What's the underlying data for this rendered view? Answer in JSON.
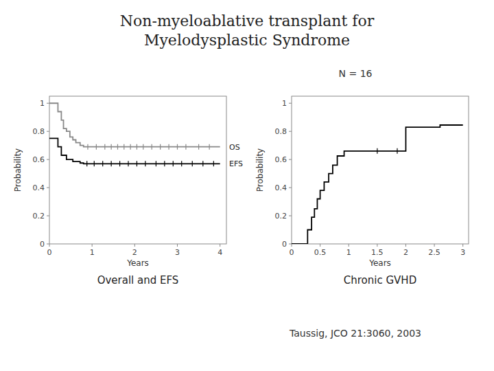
{
  "title": [
    "Non-myeloablative transplant for",
    "Myelodysplastic Syndrome"
  ],
  "annotations": [
    "N = 16",
    "Taussig, JCO 21:3060, 2003"
  ],
  "chart_data": [
    {
      "type": "step",
      "title": "Overall and EFS",
      "x_label": "Years",
      "y_label": "Probability",
      "xlim": [
        0,
        4.15
      ],
      "ylim": [
        0,
        1.05
      ],
      "xticks": [
        0,
        1,
        2,
        3,
        4
      ],
      "yticks": [
        0.0,
        0.2,
        0.4,
        0.6,
        0.8,
        1.0
      ],
      "grid": false,
      "series": [
        {
          "name": "OS",
          "color": "#888888",
          "x": [
            0,
            0.12,
            0.2,
            0.28,
            0.33,
            0.4,
            0.48,
            0.55,
            0.62,
            0.72,
            0.8,
            4.0
          ],
          "values": [
            1.0,
            1.0,
            0.94,
            0.88,
            0.82,
            0.8,
            0.76,
            0.74,
            0.72,
            0.7,
            0.69,
            0.69
          ],
          "censor_x": [
            0.9,
            1.1,
            1.3,
            1.45,
            1.6,
            1.75,
            1.9,
            2.05,
            2.2,
            2.4,
            2.6,
            2.8,
            3.0,
            3.2,
            3.5,
            3.75
          ],
          "censor_values": [
            0.69,
            0.69,
            0.69,
            0.69,
            0.69,
            0.69,
            0.69,
            0.69,
            0.69,
            0.69,
            0.69,
            0.69,
            0.69,
            0.69,
            0.69,
            0.69
          ]
        },
        {
          "name": "EFS",
          "color": "#000000",
          "x": [
            0,
            0.12,
            0.2,
            0.28,
            0.4,
            0.55,
            0.72,
            0.8,
            4.0
          ],
          "values": [
            0.75,
            0.75,
            0.69,
            0.63,
            0.6,
            0.585,
            0.575,
            0.57,
            0.57
          ],
          "censor_x": [
            0.88,
            1.05,
            1.25,
            1.45,
            1.65,
            1.85,
            2.05,
            2.25,
            2.5,
            2.7,
            2.9,
            3.1,
            3.35,
            3.6,
            3.85
          ],
          "censor_values": [
            0.57,
            0.57,
            0.57,
            0.57,
            0.57,
            0.57,
            0.57,
            0.57,
            0.57,
            0.57,
            0.57,
            0.57,
            0.57,
            0.57,
            0.57
          ]
        }
      ]
    },
    {
      "type": "step",
      "title": "Chronic GVHD",
      "x_label": "Years",
      "y_label": "Probability",
      "xlim": [
        0,
        3.1
      ],
      "ylim": [
        0,
        1.05
      ],
      "xticks": [
        0,
        0.5,
        1,
        1.5,
        2,
        2.5,
        3
      ],
      "yticks": [
        0.0,
        0.2,
        0.4,
        0.6,
        0.8,
        1.0
      ],
      "grid": false,
      "series": [
        {
          "color": "#000000",
          "x": [
            0,
            0.28,
            0.28,
            0.35,
            0.35,
            0.4,
            0.4,
            0.45,
            0.45,
            0.5,
            0.5,
            0.57,
            0.57,
            0.65,
            0.65,
            0.72,
            0.72,
            0.8,
            0.8,
            0.92,
            0.92,
            2.0,
            2.0,
            2.6,
            2.6,
            3.0
          ],
          "values": [
            0.0,
            0.0,
            0.1,
            0.1,
            0.19,
            0.19,
            0.25,
            0.25,
            0.32,
            0.32,
            0.38,
            0.38,
            0.44,
            0.44,
            0.5,
            0.5,
            0.56,
            0.56,
            0.625,
            0.625,
            0.66,
            0.66,
            0.83,
            0.83,
            0.845,
            0.845
          ],
          "censor_x": [
            1.5,
            1.85
          ],
          "censor_values": [
            0.66,
            0.66
          ]
        }
      ]
    }
  ]
}
